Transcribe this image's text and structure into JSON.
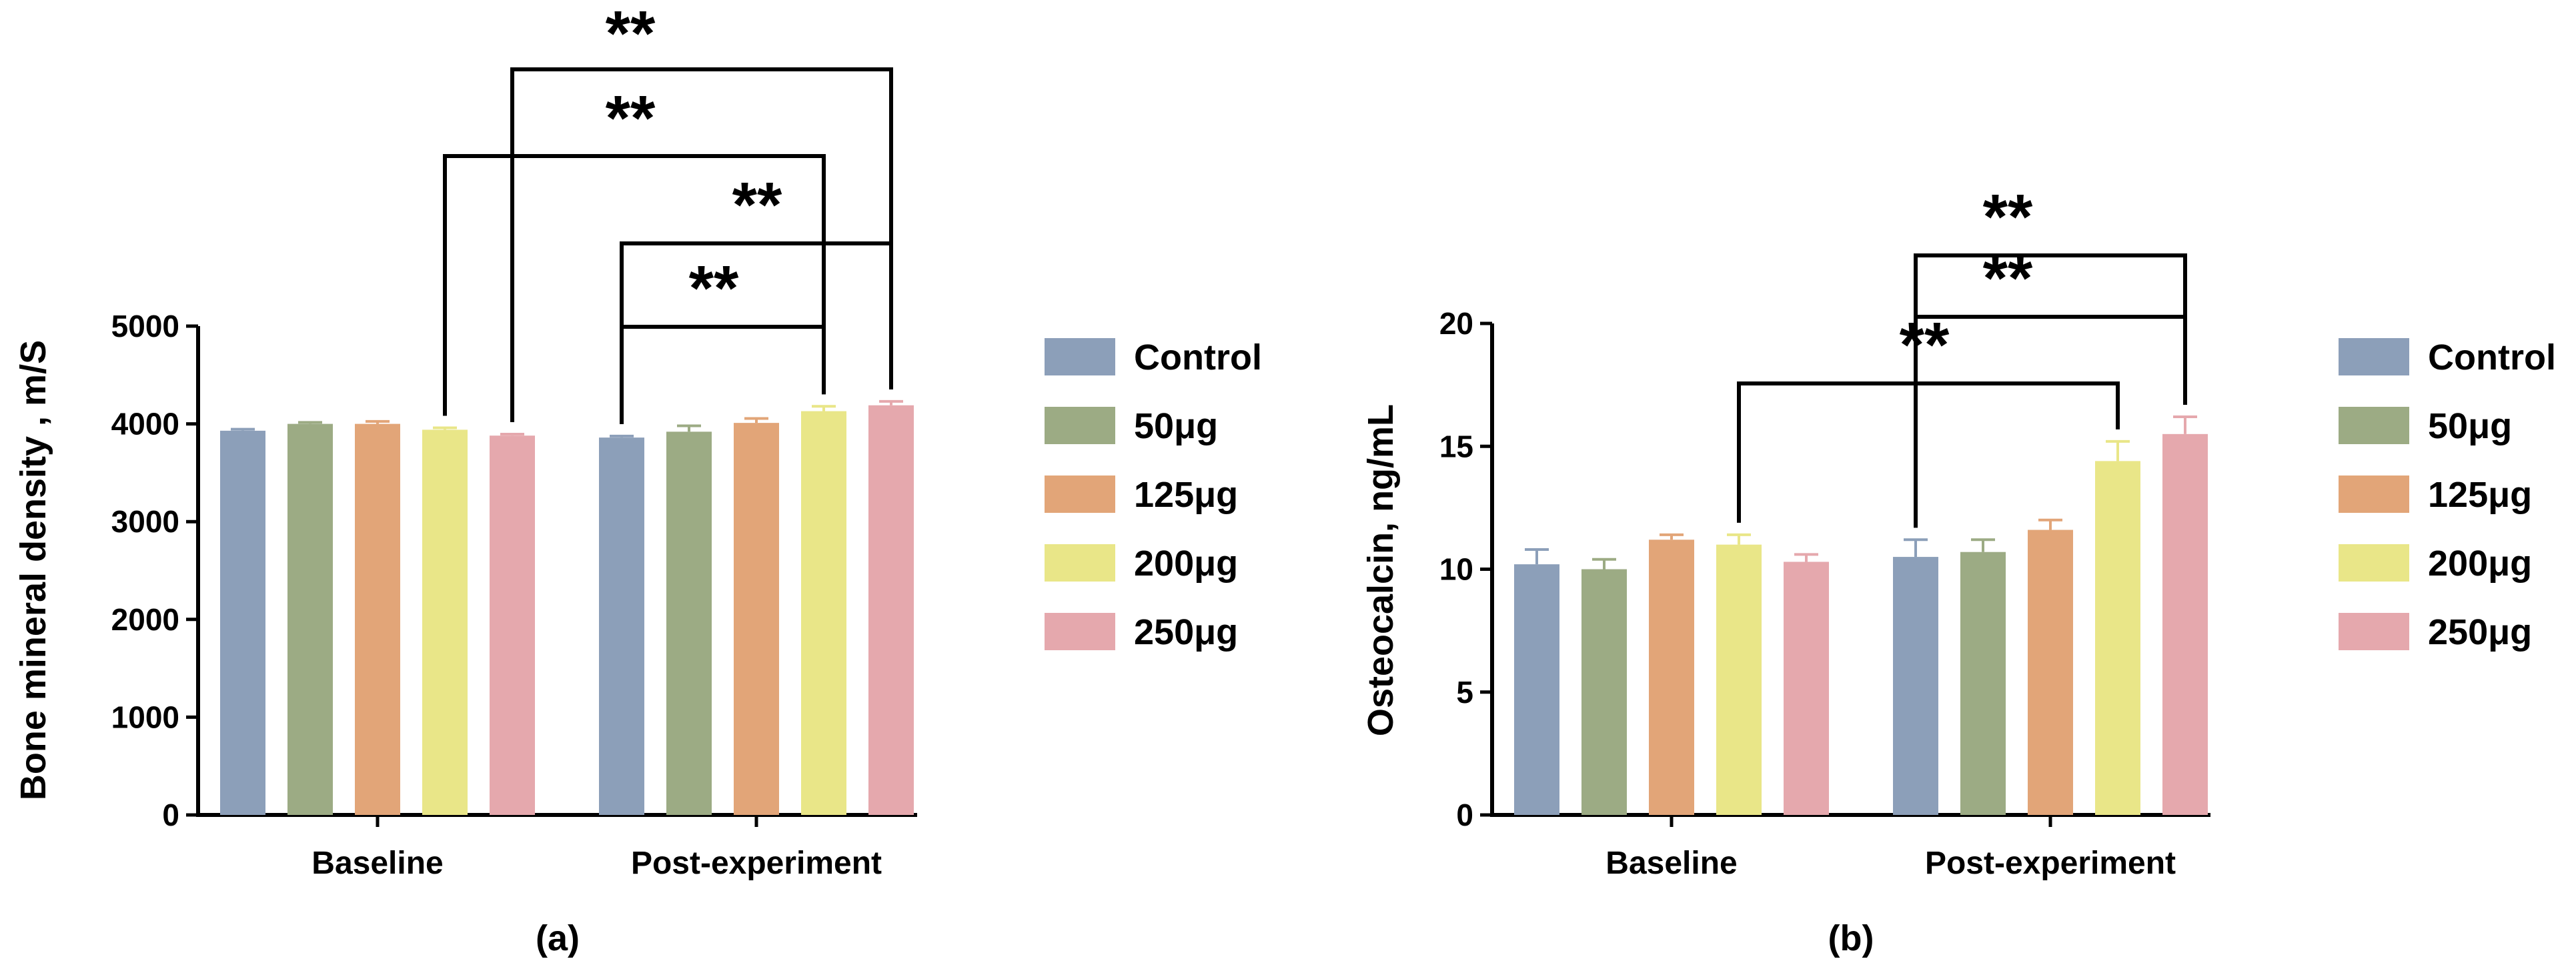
{
  "legend": [
    {
      "label": "Control",
      "color": "#8c9fb9"
    },
    {
      "label": "50μg",
      "color": "#9cab84"
    },
    {
      "label": "125μg",
      "color": "#e2a578"
    },
    {
      "label": "200μg",
      "color": "#e9e688"
    },
    {
      "label": "250μg",
      "color": "#e5a8ad"
    }
  ],
  "chart_data": [
    {
      "type": "bar",
      "panel_label": "(a)",
      "ylabel": "Bone mineral density , m/S",
      "xlabel": "",
      "categories": [
        "Baseline",
        "Post-experiment"
      ],
      "ylim": [
        0,
        5000
      ],
      "yticks": [
        0,
        1000,
        2000,
        3000,
        4000,
        5000
      ],
      "series": [
        {
          "name": "Control",
          "values": [
            3930,
            3860
          ],
          "errors": [
            15,
            15
          ]
        },
        {
          "name": "50μg",
          "values": [
            4000,
            3920
          ],
          "errors": [
            15,
            60
          ]
        },
        {
          "name": "125μg",
          "values": [
            4000,
            4010
          ],
          "errors": [
            25,
            45
          ]
        },
        {
          "name": "200μg",
          "values": [
            3940,
            4130
          ],
          "errors": [
            20,
            50
          ]
        },
        {
          "name": "250μg",
          "values": [
            3880,
            4190
          ],
          "errors": [
            15,
            40
          ]
        }
      ],
      "significance": [
        {
          "from": [
            1,
            0
          ],
          "to": [
            1,
            3
          ],
          "label": "**"
        },
        {
          "from": [
            1,
            0
          ],
          "to": [
            1,
            4
          ],
          "label": "**"
        },
        {
          "from": [
            0,
            3
          ],
          "to": [
            1,
            3
          ],
          "label": "**"
        },
        {
          "from": [
            0,
            4
          ],
          "to": [
            1,
            4
          ],
          "label": "**"
        }
      ],
      "legend_position": "right",
      "grid": false
    },
    {
      "type": "bar",
      "panel_label": "(b)",
      "ylabel": "Osteocalcin, ng/mL",
      "xlabel": "",
      "categories": [
        "Baseline",
        "Post-experiment"
      ],
      "ylim": [
        0,
        20
      ],
      "yticks": [
        0,
        5,
        10,
        15,
        20
      ],
      "series": [
        {
          "name": "Control",
          "values": [
            10.2,
            10.5
          ],
          "errors": [
            0.6,
            0.7
          ]
        },
        {
          "name": "50μg",
          "values": [
            10.0,
            10.7
          ],
          "errors": [
            0.4,
            0.5
          ]
        },
        {
          "name": "125μg",
          "values": [
            11.2,
            11.6
          ],
          "errors": [
            0.2,
            0.4
          ]
        },
        {
          "name": "200μg",
          "values": [
            11.0,
            14.4
          ],
          "errors": [
            0.4,
            0.8
          ]
        },
        {
          "name": "250μg",
          "values": [
            10.3,
            15.5
          ],
          "errors": [
            0.3,
            0.7
          ]
        }
      ],
      "significance": [
        {
          "from": [
            0,
            3
          ],
          "to": [
            1,
            3
          ],
          "label": "**"
        },
        {
          "from": [
            1,
            0
          ],
          "to": [
            1,
            4
          ],
          "label": "**"
        },
        {
          "from": [
            1,
            0
          ],
          "to": [
            1,
            4
          ],
          "label": "**"
        }
      ],
      "legend_position": "right",
      "grid": false
    }
  ]
}
